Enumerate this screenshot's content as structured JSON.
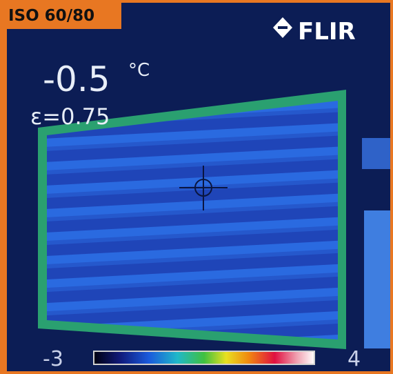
{
  "badge": "ISO 60/80",
  "logo": "FLIR",
  "temperature": {
    "value": "-0.5",
    "unit": "°C"
  },
  "emissivity": "ε=0.75",
  "scale": {
    "min": "-3",
    "max": "4"
  }
}
